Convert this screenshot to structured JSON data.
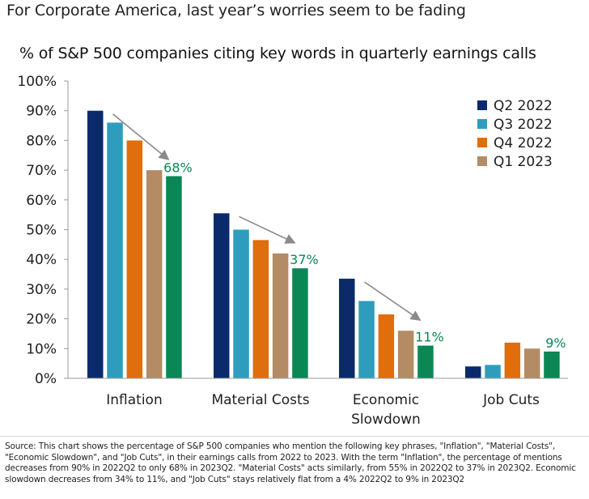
{
  "headline": "For Corporate America, last year’s worries seem to be fading",
  "source_note": "Source: This chart shows the percentage of S&P 500 companies who mention the following key phrases, \"Inflation\", \"Material Costs\", \"Economic Slowdown\", and \"Job Cuts\", in their earnings calls from 2022 to 2023. With the term \"Inflation\", the percentage of mentions decreases from 90% in 2022Q2 to only 68% in 2023Q2. \"Material Costs\" acts similarly, from 55% in 2022Q2 to 37% in 2023Q2. Economic slowdown decreases from 34% to 11%, and \"Job Cuts\" stays relatively flat from a 4% 2022Q2 to 9% in 2023Q2",
  "chart_data": {
    "type": "bar",
    "title": "% of S&P 500 companies citing key words in quarterly earnings calls",
    "xlabel": "",
    "ylabel": "",
    "ylim": [
      0,
      100
    ],
    "yticks": [
      "0%",
      "10%",
      "20%",
      "30%",
      "40%",
      "50%",
      "60%",
      "70%",
      "80%",
      "90%",
      "100%"
    ],
    "categories": [
      [
        "Inflation"
      ],
      [
        "Material Costs"
      ],
      [
        "Economic",
        "Slowdown"
      ],
      [
        "Job Cuts"
      ]
    ],
    "series": [
      {
        "name": "Q2 2022",
        "color": "#0a2a6b",
        "values": [
          90,
          55.5,
          33.5,
          4
        ]
      },
      {
        "name": "Q3 2022",
        "color": "#2e9dbd",
        "values": [
          86,
          50,
          26,
          4.5
        ]
      },
      {
        "name": "Q4 2022",
        "color": "#e06e0c",
        "values": [
          80,
          46.5,
          21.5,
          12
        ]
      },
      {
        "name": "Q1 2023",
        "color": "#b38b64",
        "values": [
          70,
          42,
          16,
          10
        ]
      },
      {
        "name": "Q2 2023",
        "color": "#0a8754",
        "values": [
          68,
          37,
          11,
          9
        ],
        "in_legend": false
      }
    ],
    "annotations": [
      "68%",
      "37%",
      "11%",
      "9%"
    ],
    "annotation_color": "#0a8754",
    "trend_arrows": [
      true,
      true,
      true,
      false
    ],
    "legend_position": "right"
  }
}
